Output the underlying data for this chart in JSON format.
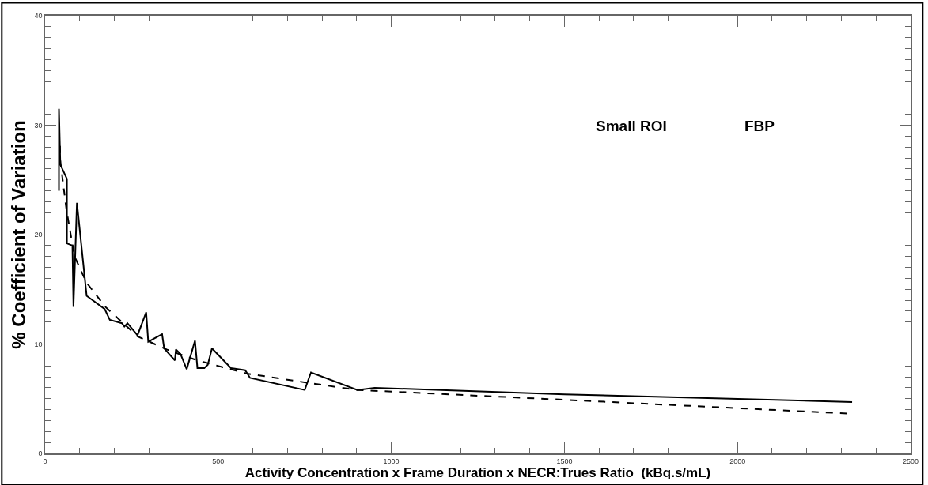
{
  "chart_data": {
    "type": "line",
    "xlabel": "Activity Concentration x Frame Duration x NECR:Trues Ratio  (kBq.s/mL)",
    "ylabel": "% Coefficient of Variation",
    "annotations": [
      "Small ROI",
      "FBP"
    ],
    "xlim": [
      0,
      2500
    ],
    "xticks": [
      0,
      500,
      1000,
      1500,
      2000,
      2500
    ],
    "ylim": [
      0,
      40
    ],
    "yticks": [
      0,
      10,
      20,
      30,
      40
    ],
    "marker": "none",
    "series": [
      {
        "color": "#000000",
        "line_style": "solid",
        "x": [
          40,
          40,
          44,
          63,
          63,
          79,
          82,
          92,
          120,
          172,
          187,
          222,
          229,
          238,
          267,
          292,
          298,
          338,
          344,
          375,
          378,
          391,
          409,
          433,
          440,
          460,
          470,
          482,
          537,
          578,
          592,
          750,
          768,
          902,
          952,
          1500,
          2331
        ],
        "values": [
          24.0,
          31.5,
          26.4,
          25.1,
          19.2,
          19.0,
          13.4,
          22.9,
          14.4,
          13.2,
          12.2,
          11.9,
          11.6,
          11.9,
          10.8,
          12.9,
          10.2,
          10.9,
          9.6,
          8.5,
          9.5,
          9.1,
          7.7,
          10.3,
          7.8,
          7.8,
          8.1,
          9.6,
          7.8,
          7.6,
          6.9,
          5.8,
          7.4,
          5.8,
          6.0,
          5.4,
          4.7
        ]
      },
      {
        "color": "#000000",
        "line_style": "dashed",
        "x": [
          43,
          44,
          62,
          85,
          120,
          174,
          267,
          351,
          440,
          583,
          770,
          902,
          1500,
          2317
        ],
        "values": [
          28.1,
          26.7,
          22.2,
          18.0,
          15.6,
          13.4,
          10.7,
          9.5,
          8.5,
          7.3,
          6.4,
          5.8,
          4.9,
          3.65
        ]
      }
    ]
  }
}
